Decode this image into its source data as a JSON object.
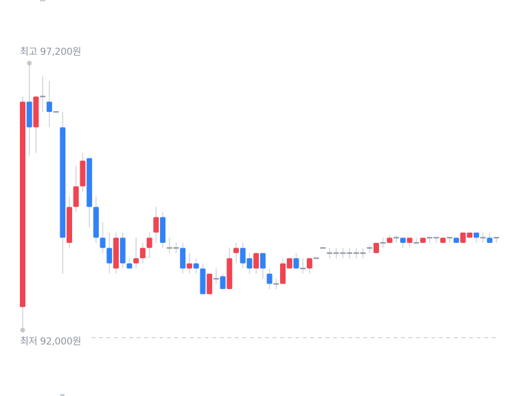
{
  "chart_data": {
    "type": "candlestick",
    "high_label": "최고 97,200원",
    "low_label": "최저 92,000원",
    "high_value": 97200,
    "low_value": 92000,
    "ylim": [
      92000,
      97200
    ],
    "colors": {
      "up": "#f04452",
      "down": "#3182f6",
      "flat": "#8b95a1",
      "wick": "#d1d6db",
      "marker": "#c4c9cf",
      "low_line": "#d1d6db"
    },
    "candles_ohlc": [
      [
        92450,
        96550,
        92000,
        96450
      ],
      [
        96450,
        97200,
        95400,
        95950
      ],
      [
        95950,
        96550,
        95450,
        96550
      ],
      [
        96550,
        96950,
        96250,
        96550
      ],
      [
        96450,
        96850,
        95950,
        96250
      ],
      [
        96250,
        96250,
        96250,
        96250
      ],
      [
        95950,
        96250,
        93100,
        93800
      ],
      [
        93700,
        94600,
        93600,
        94400
      ],
      [
        94400,
        95200,
        94300,
        94800
      ],
      [
        94800,
        95450,
        94700,
        95300
      ],
      [
        95350,
        95350,
        94000,
        94400
      ],
      [
        94400,
        94600,
        93700,
        93800
      ],
      [
        93800,
        94100,
        93500,
        93600
      ],
      [
        93600,
        93900,
        93100,
        93300
      ],
      [
        93200,
        93900,
        93100,
        93800
      ],
      [
        93800,
        93900,
        93200,
        93300
      ],
      [
        93300,
        93400,
        93200,
        93200
      ],
      [
        93300,
        93800,
        93200,
        93400
      ],
      [
        93400,
        93700,
        93300,
        93600
      ],
      [
        93600,
        93900,
        93400,
        93800
      ],
      [
        93900,
        94400,
        93700,
        94200
      ],
      [
        94200,
        94300,
        93600,
        93700
      ],
      [
        93600,
        93800,
        93500,
        93600
      ],
      [
        93600,
        93700,
        93500,
        93600
      ],
      [
        93600,
        93700,
        93100,
        93200
      ],
      [
        93200,
        93500,
        93100,
        93300
      ],
      [
        93300,
        93400,
        93100,
        93200
      ],
      [
        93200,
        93300,
        92700,
        92700
      ],
      [
        92700,
        93100,
        92700,
        93100
      ],
      [
        93000,
        93200,
        92900,
        93000
      ],
      [
        93050,
        93100,
        92800,
        92800
      ],
      [
        92800,
        93600,
        92800,
        93400
      ],
      [
        93500,
        93700,
        93300,
        93600
      ],
      [
        93600,
        93700,
        93200,
        93300
      ],
      [
        93400,
        93500,
        93100,
        93200
      ],
      [
        93200,
        93500,
        93100,
        93500
      ],
      [
        93500,
        93500,
        93000,
        93200
      ],
      [
        93100,
        93200,
        92800,
        92900
      ],
      [
        92900,
        93000,
        92800,
        92900
      ],
      [
        92900,
        93400,
        92900,
        93300
      ],
      [
        93200,
        93400,
        93200,
        93400
      ],
      [
        93400,
        93500,
        93200,
        93200
      ],
      [
        93200,
        93400,
        93100,
        93200
      ],
      [
        93200,
        93400,
        93100,
        93400
      ],
      [
        93400,
        93400,
        93400,
        93400
      ],
      [
        93600,
        93600,
        93600,
        93600
      ],
      [
        93500,
        93600,
        93400,
        93500
      ],
      [
        93500,
        93600,
        93400,
        93500
      ],
      [
        93500,
        93600,
        93400,
        93500
      ],
      [
        93500,
        93600,
        93400,
        93500
      ],
      [
        93500,
        93600,
        93400,
        93500
      ],
      [
        93500,
        93600,
        93400,
        93500
      ],
      [
        93600,
        93650,
        93500,
        93600
      ],
      [
        93500,
        93700,
        93500,
        93700
      ],
      [
        93700,
        93800,
        93600,
        93700
      ],
      [
        93700,
        93850,
        93700,
        93800
      ],
      [
        93800,
        93850,
        93700,
        93800
      ],
      [
        93800,
        93800,
        93600,
        93700
      ],
      [
        93700,
        93800,
        93600,
        93800
      ],
      [
        93700,
        93800,
        93700,
        93700
      ],
      [
        93700,
        93800,
        93700,
        93800
      ],
      [
        93800,
        93800,
        93700,
        93800
      ],
      [
        93800,
        93800,
        93700,
        93800
      ],
      [
        93700,
        93800,
        93700,
        93800
      ],
      [
        93800,
        93800,
        93700,
        93800
      ],
      [
        93800,
        93800,
        93700,
        93700
      ],
      [
        93700,
        93900,
        93700,
        93900
      ],
      [
        93800,
        93900,
        93800,
        93900
      ],
      [
        93900,
        93900,
        93700,
        93800
      ],
      [
        93800,
        93900,
        93700,
        93800
      ],
      [
        93800,
        93900,
        93700,
        93700
      ],
      [
        93800,
        93800,
        93700,
        93800
      ]
    ]
  }
}
